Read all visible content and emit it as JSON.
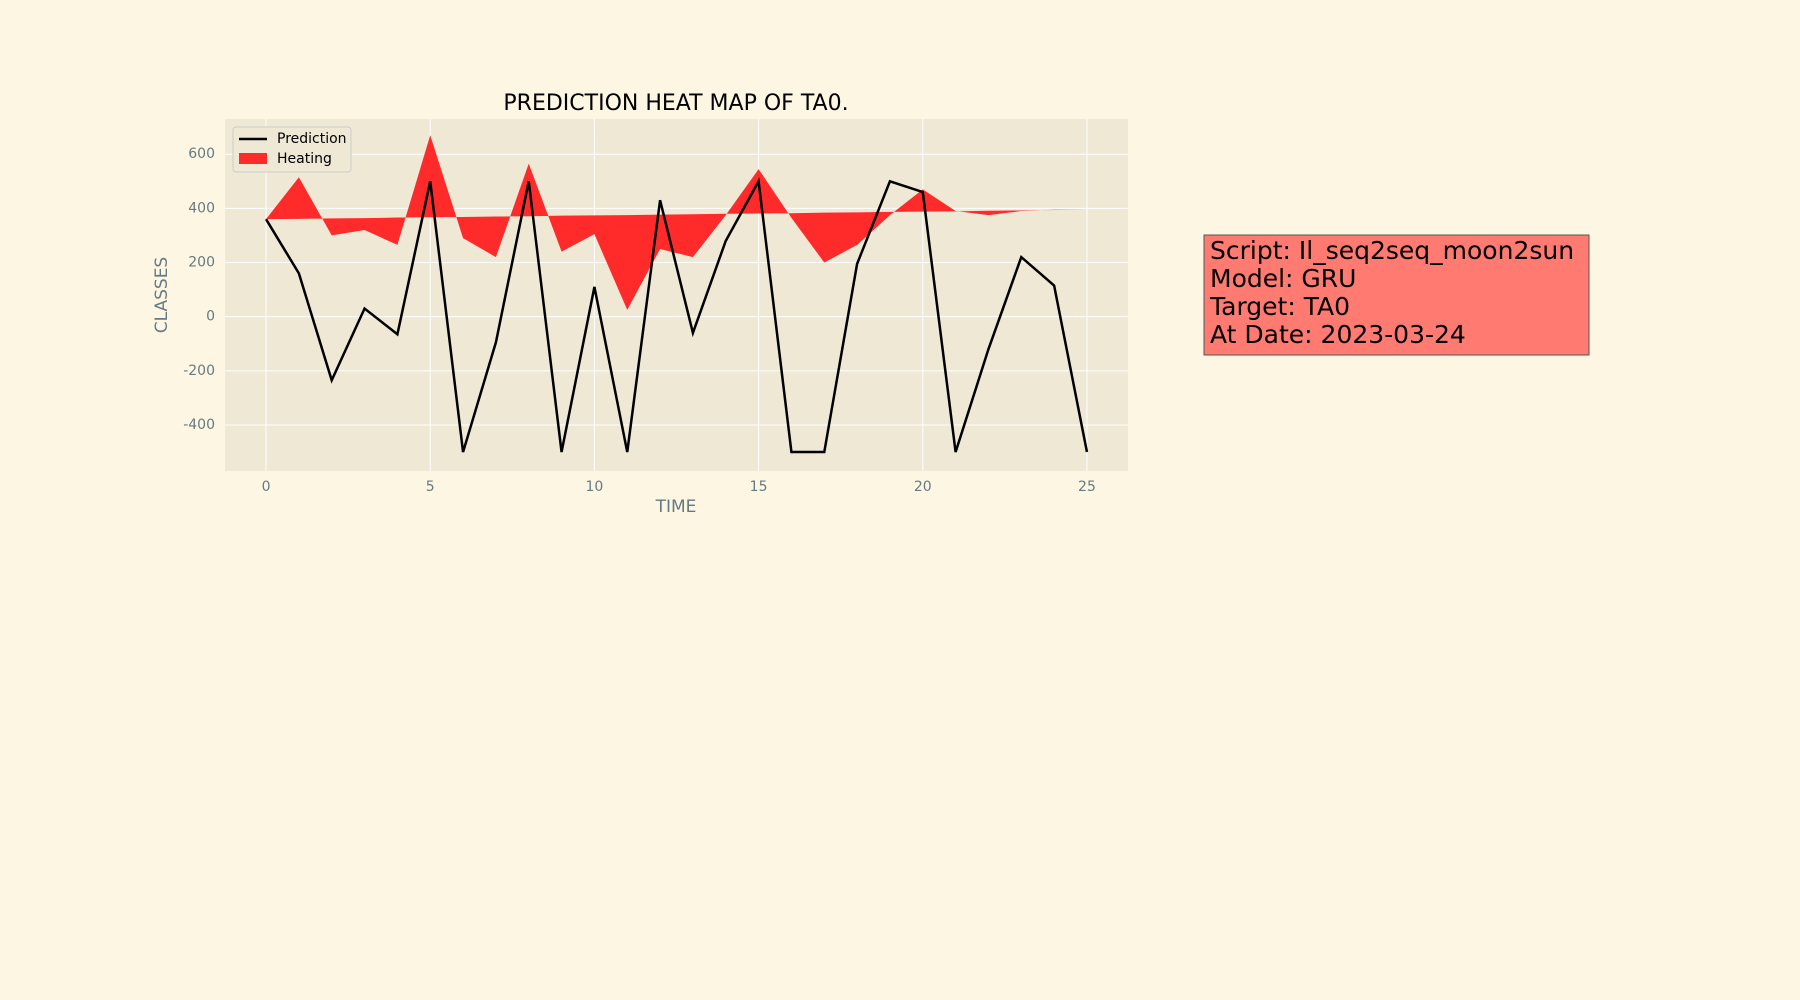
{
  "chart_data": {
    "type": "line",
    "title": "PREDICTION HEAT MAP OF TA0.",
    "xlabel": "TIME",
    "ylabel": "CLASSES",
    "x": [
      0,
      1,
      2,
      3,
      4,
      5,
      6,
      7,
      8,
      9,
      10,
      11,
      12,
      13,
      14,
      15,
      16,
      17,
      18,
      19,
      20,
      21,
      22,
      23,
      24,
      25
    ],
    "series": [
      {
        "name": "Prediction",
        "color": "#000000",
        "values": [
          360,
          160,
          -235,
          30,
          -65,
          500,
          -500,
          -95,
          500,
          -500,
          110,
          -500,
          430,
          -60,
          280,
          500,
          -500,
          -500,
          195,
          500,
          460,
          -500,
          -120,
          220,
          115,
          -500
        ]
      },
      {
        "name": "Heating",
        "color": "#ff2a2a",
        "values": [
          360,
          515,
          300,
          320,
          265,
          670,
          290,
          220,
          565,
          240,
          305,
          25,
          250,
          220,
          375,
          545,
          365,
          200,
          265,
          375,
          470,
          390,
          375,
          390,
          395,
          395
        ],
        "base": [
          360,
          361,
          363,
          364,
          366,
          367,
          368,
          370,
          371,
          373,
          374,
          375,
          377,
          378,
          380,
          381,
          382,
          384,
          385,
          387,
          388,
          389,
          391,
          392,
          394,
          395
        ]
      }
    ],
    "xlim": [
      -1.25,
      26.25
    ],
    "xticks": [
      0,
      5,
      10,
      15,
      20,
      25
    ],
    "ylim": [
      -570,
      730
    ],
    "yticks": [
      -400,
      -200,
      0,
      200,
      400,
      600
    ],
    "grid": true,
    "legend": "upper left",
    "annotations": [
      "Script: Il_seq2seq_moon2sun",
      "Model: GRU",
      "Target: TA0",
      "At Date: 2023-03-24"
    ]
  }
}
